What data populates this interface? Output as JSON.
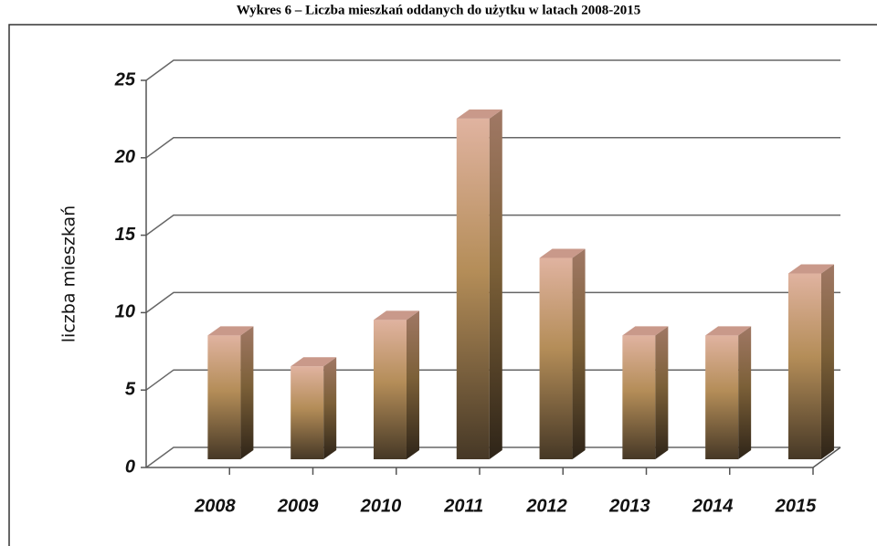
{
  "chart_data": {
    "type": "bar3d",
    "title": "Wykres 6 – Liczba mieszkań oddanych do użytku w latach 2008-2015",
    "y_label": "liczba mieszkań",
    "categories": [
      "2008",
      "2009",
      "2010",
      "2011",
      "2012",
      "2013",
      "2014",
      "2015"
    ],
    "values": [
      8,
      6,
      9,
      22,
      13,
      8,
      8,
      12
    ],
    "ylim": [
      0,
      25
    ],
    "yticks": [
      0,
      5,
      10,
      15,
      20,
      25
    ],
    "grid": true
  }
}
